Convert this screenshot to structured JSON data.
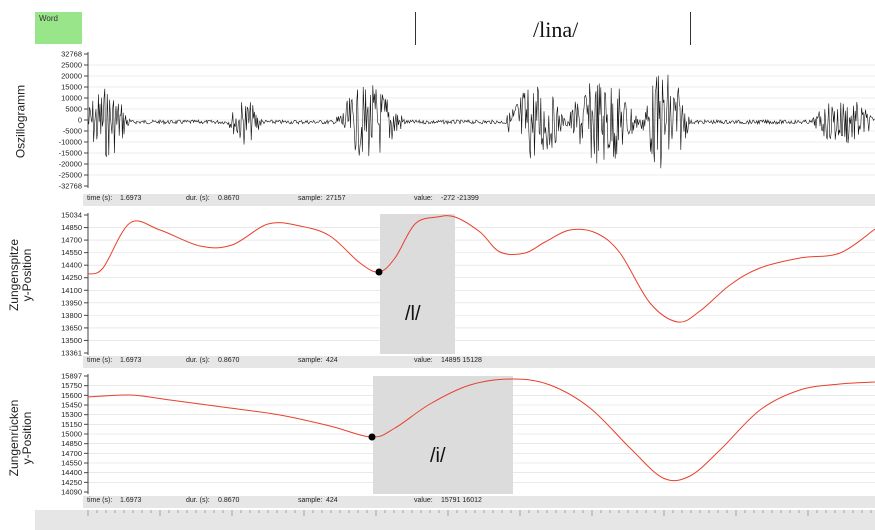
{
  "word_tier": {
    "label": "Word",
    "segment_text": "/lina/"
  },
  "oscillogram": {
    "ylabel": "Oszillogramm",
    "ticks": [
      "32768",
      "25000",
      "20000",
      "15000",
      "10000",
      "5000",
      "0",
      "-5000",
      "-10000",
      "-15000",
      "-20000",
      "-25000",
      "-32768"
    ],
    "status": {
      "time_label": "time (s):",
      "time": "1.6973",
      "dur_label": "dur. (s):",
      "dur": "0.8670",
      "sample_label": "sample:",
      "sample": "27157",
      "value_label": "value:",
      "value": "-272 -21399"
    }
  },
  "tongue_tip": {
    "ylabel_1": "Zungenspitze",
    "ylabel_2": "y-Position",
    "ticks": [
      "15034",
      "14850",
      "14700",
      "14550",
      "14400",
      "14250",
      "14100",
      "13950",
      "13800",
      "13650",
      "13500",
      "13361"
    ],
    "segment_label": "/l/",
    "status": {
      "time_label": "time (s):",
      "time": "1.6973",
      "dur_label": "dur. (s):",
      "dur": "0.8670",
      "sample_label": "sample:",
      "sample": "424",
      "value_label": "value:",
      "value": "14895 15128"
    }
  },
  "tongue_back": {
    "ylabel_1": "Zungenrücken",
    "ylabel_2": "y-Position",
    "ticks": [
      "15897",
      "15750",
      "15600",
      "15450",
      "15300",
      "15150",
      "15000",
      "14850",
      "14700",
      "14550",
      "14400",
      "14250",
      "14090"
    ],
    "segment_label": "/i/",
    "status": {
      "time_label": "time (s):",
      "time": "1.6973",
      "dur_label": "dur. (s):",
      "dur": "0.8670",
      "sample_label": "sample:",
      "sample": "424",
      "value_label": "value:",
      "value": "15791 16012"
    }
  },
  "colors": {
    "trajectory": "#e8402c",
    "segment_shade": "#dcdcdc",
    "word_label_bg": "#99e58a"
  }
}
